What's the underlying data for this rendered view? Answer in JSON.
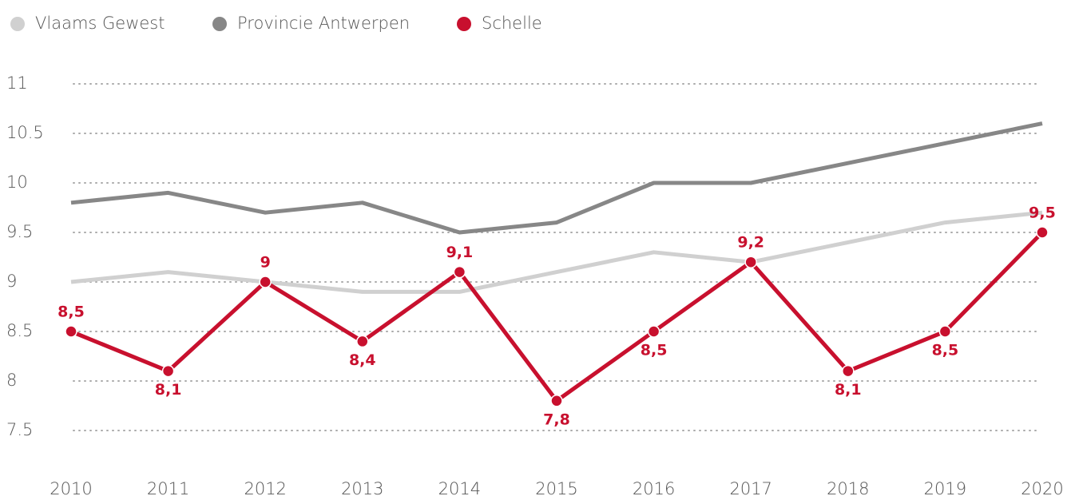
{
  "chart_data": {
    "type": "line",
    "categories": [
      "2010",
      "2011",
      "2012",
      "2013",
      "2014",
      "2015",
      "2016",
      "2017",
      "2018",
      "2019",
      "2020"
    ],
    "series": [
      {
        "name": "Vlaams Gewest",
        "color": "#d0d0d0",
        "values": [
          9.0,
          9.1,
          9.0,
          8.9,
          8.9,
          9.1,
          9.3,
          9.2,
          9.4,
          9.6,
          9.7
        ]
      },
      {
        "name": "Provincie Antwerpen",
        "color": "#878787",
        "values": [
          9.8,
          9.9,
          9.7,
          9.8,
          9.5,
          9.6,
          10.0,
          10.0,
          10.2,
          10.4,
          10.6
        ]
      },
      {
        "name": "Schelle",
        "color": "#c8102e",
        "values": [
          8.5,
          8.1,
          9.0,
          8.4,
          9.1,
          7.8,
          8.5,
          9.2,
          8.1,
          8.5,
          9.5
        ],
        "value_labels": [
          "8,5",
          "8,1",
          "9",
          "8,4",
          "9,1",
          "7,8",
          "8,5",
          "9,2",
          "8,1",
          "8,5",
          "9,5"
        ],
        "markers": true
      }
    ],
    "ylim": [
      7.5,
      11
    ],
    "yticks": [
      7.5,
      8,
      8.5,
      9,
      9.5,
      10,
      10.5,
      11
    ],
    "grid": true,
    "legend": "top-left"
  }
}
